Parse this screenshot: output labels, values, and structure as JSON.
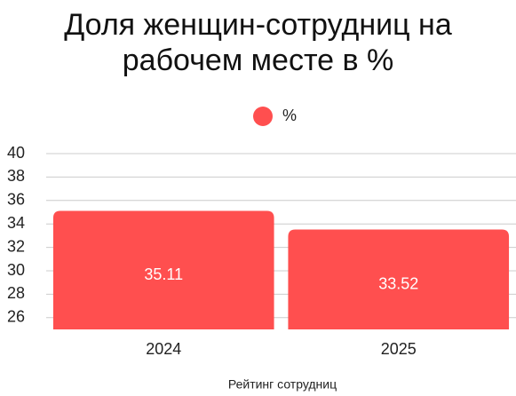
{
  "chart_data": {
    "type": "bar",
    "title": "Доля женщин-сотрудниц на рабочем месте в %",
    "categories": [
      "2024",
      "2025"
    ],
    "series": [
      {
        "name": "%",
        "color": "#ff4f4f",
        "values": [
          35.11,
          33.52
        ]
      }
    ],
    "x_label": "Рейтинг сотрудниц",
    "ylim": [
      25,
      40
    ],
    "yticks": [
      26,
      28,
      30,
      32,
      34,
      36,
      38,
      40
    ],
    "grid": true,
    "legend": "top"
  }
}
